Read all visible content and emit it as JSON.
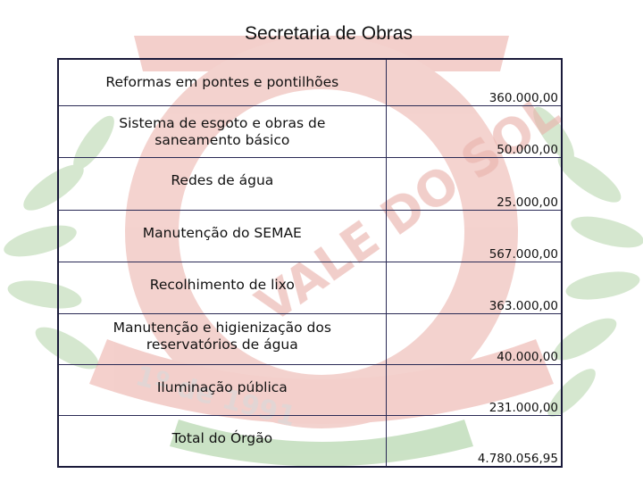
{
  "page": {
    "title": "Secretaria de Obras",
    "watermark_text": "VALE DO SOL",
    "watermark_year": "1º de 1991"
  },
  "table": {
    "rows": [
      {
        "item": "Reformas em pontes e pontilhões",
        "value": "360.000,00"
      },
      {
        "item": "Sistema de esgoto e obras de saneamento básico",
        "value": "50.000,00"
      },
      {
        "item": "Redes de água",
        "value": "25.000,00"
      },
      {
        "item": "Manutenção do SEMAE",
        "value": "567.000,00"
      },
      {
        "item": "Recolhimento de lixo",
        "value": "363.000,00"
      },
      {
        "item": "Manutenção e higienização dos reservatórios de água",
        "value": "40.000,00"
      },
      {
        "item": "Iluminação pública",
        "value": "231.000,00"
      },
      {
        "item": "Total do Órgão",
        "value": "4.780.056,95"
      }
    ]
  },
  "colors": {
    "border": "#1a1a3a",
    "watermark_red": "#e9a7a1",
    "watermark_green": "#b9d8b0"
  }
}
